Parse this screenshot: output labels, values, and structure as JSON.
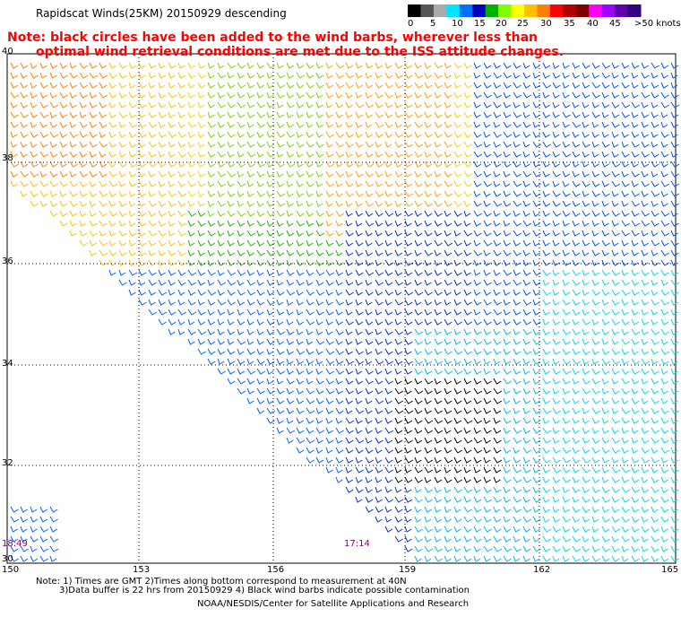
{
  "title": "Rapidscat Winds(25KM) 20150929 descending",
  "note": {
    "line1": "Note: black circles have been added to the wind barbs, wherever less than",
    "line2": "optimal wind retrieval conditions are met due to the ISS attitude changes."
  },
  "legend": {
    "labels": [
      "0",
      "5",
      "10",
      "15",
      "20",
      "25",
      "30",
      "35",
      "40",
      "45",
      ">50 knots"
    ],
    "colors": [
      "#000000",
      "#555555",
      "#aaaaaa",
      "#00e5ff",
      "#0070ff",
      "#0000c0",
      "#00b000",
      "#7fff00",
      "#ffff00",
      "#ffc000",
      "#ff7f00",
      "#ff0000",
      "#b00000",
      "#800000",
      "#ff00ff",
      "#a000ff",
      "#6000b0",
      "#300080"
    ]
  },
  "map": {
    "lat_labels": [
      "40",
      "38",
      "36",
      "34",
      "32",
      "30"
    ],
    "lon_labels": [
      "150",
      "153",
      "156",
      "159",
      "162",
      "165"
    ],
    "time_labels": [
      "18:49",
      "17:14"
    ]
  },
  "footnote": {
    "line1": "Note: 1) Times are GMT 2)Times along bottom correspond to measurement at 40N",
    "line2": "3)Data buffer is 22 hrs from 20150929 4) Black wind barbs indicate possible contamination"
  },
  "credit": "NOAA/NESDIS/Center for Satellite Applications and Research"
}
